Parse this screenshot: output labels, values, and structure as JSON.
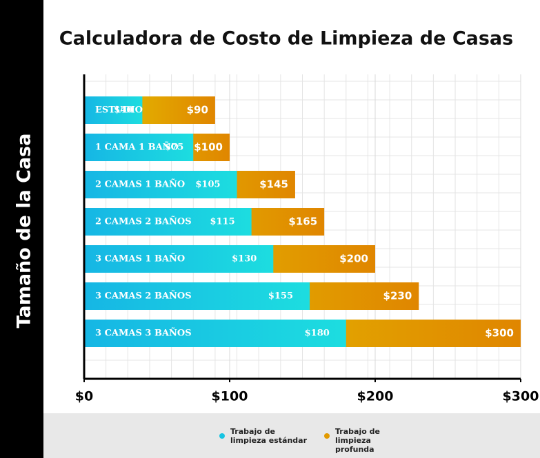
{
  "chart_data": {
    "type": "bar",
    "orientation": "horizontal",
    "title": "Calculadora de Costo de Limpieza de Casas",
    "y_label": "Tamaño de la Casa",
    "categories": [
      "ESTUDIO",
      "1 CAMA 1 BAÑO",
      "2 CAMAS 1 BAÑO",
      "2 CAMAS 2 BAÑOS",
      "3 CAMAS 1 BAÑO",
      "3 CAMAS 2 BAÑOS",
      "3 CAMAS 3 BAÑOS"
    ],
    "series": [
      {
        "name": "Trabajo de limpieza estándar",
        "color": "#17c4e2",
        "values": [
          40,
          75,
          105,
          115,
          130,
          155,
          180
        ],
        "value_labels": [
          "$40",
          "$75",
          "$105",
          "$115",
          "$130",
          "$155",
          "$180"
        ]
      },
      {
        "name": "Trabajo de limpieza profunda",
        "color": "#e29a00",
        "values": [
          90,
          100,
          145,
          165,
          200,
          230,
          300
        ],
        "value_labels": [
          "$90",
          "$100",
          "$145",
          "$165",
          "$200",
          "$230",
          "$300"
        ]
      }
    ],
    "xlim": [
      0,
      300
    ],
    "xticks": [
      {
        "value": 0,
        "label": "$0"
      },
      {
        "value": 100,
        "label": "$100"
      },
      {
        "value": 200,
        "label": "$200"
      },
      {
        "value": 300,
        "label": "$300"
      }
    ],
    "grid": true
  }
}
